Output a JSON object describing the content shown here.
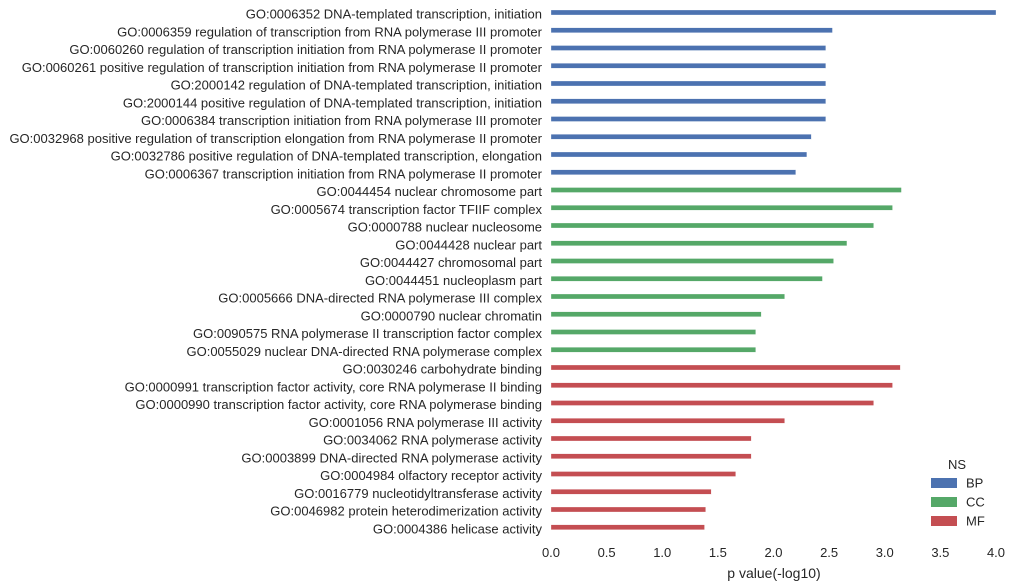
{
  "chart_data": {
    "type": "bar",
    "orientation": "horizontal",
    "xlabel": "p value(-log10)",
    "xlim": [
      0,
      4.0
    ],
    "xticks": [
      "0.0",
      "0.5",
      "1.0",
      "1.5",
      "2.0",
      "2.5",
      "3.0",
      "3.5",
      "4.0"
    ],
    "grid": false,
    "legend": {
      "title": "NS",
      "placement": "lower-right",
      "entries": [
        "BP",
        "CC",
        "MF"
      ]
    },
    "colors": {
      "BP": "#4c72b0",
      "CC": "#55a868",
      "MF": "#c44e52"
    },
    "categories": [
      {
        "label": "GO:0006352 DNA-templated transcription, initiation",
        "ns": "BP",
        "value": 4.0
      },
      {
        "label": "GO:0006359 regulation of transcription from RNA polymerase III promoter",
        "ns": "BP",
        "value": 2.53
      },
      {
        "label": "GO:0060260 regulation of transcription initiation from RNA polymerase II promoter",
        "ns": "BP",
        "value": 2.47
      },
      {
        "label": "GO:0060261 positive regulation of transcription initiation from RNA polymerase II promoter",
        "ns": "BP",
        "value": 2.47
      },
      {
        "label": "GO:2000142 regulation of DNA-templated transcription, initiation",
        "ns": "BP",
        "value": 2.47
      },
      {
        "label": "GO:2000144 positive regulation of DNA-templated transcription, initiation",
        "ns": "BP",
        "value": 2.47
      },
      {
        "label": "GO:0006384 transcription initiation from RNA polymerase III promoter",
        "ns": "BP",
        "value": 2.47
      },
      {
        "label": "GO:0032968 positive regulation of transcription elongation from RNA polymerase II promoter",
        "ns": "BP",
        "value": 2.34
      },
      {
        "label": "GO:0032786 positive regulation of DNA-templated transcription, elongation",
        "ns": "BP",
        "value": 2.3
      },
      {
        "label": "GO:0006367 transcription initiation from RNA polymerase II promoter",
        "ns": "BP",
        "value": 2.2
      },
      {
        "label": "GO:0044454 nuclear chromosome part",
        "ns": "CC",
        "value": 3.15
      },
      {
        "label": "GO:0005674 transcription factor TFIIF complex",
        "ns": "CC",
        "value": 3.07
      },
      {
        "label": "GO:0000788 nuclear nucleosome",
        "ns": "CC",
        "value": 2.9
      },
      {
        "label": "GO:0044428 nuclear part",
        "ns": "CC",
        "value": 2.66
      },
      {
        "label": "GO:0044427 chromosomal part",
        "ns": "CC",
        "value": 2.54
      },
      {
        "label": "GO:0044451 nucleoplasm part",
        "ns": "CC",
        "value": 2.44
      },
      {
        "label": "GO:0005666 DNA-directed RNA polymerase III complex",
        "ns": "CC",
        "value": 2.1
      },
      {
        "label": "GO:0000790 nuclear chromatin",
        "ns": "CC",
        "value": 1.89
      },
      {
        "label": "GO:0090575 RNA polymerase II transcription factor complex",
        "ns": "CC",
        "value": 1.84
      },
      {
        "label": "GO:0055029 nuclear DNA-directed RNA polymerase complex",
        "ns": "CC",
        "value": 1.84
      },
      {
        "label": "GO:0030246 carbohydrate binding",
        "ns": "MF",
        "value": 3.14
      },
      {
        "label": "GO:0000991 transcription factor activity, core RNA polymerase II binding",
        "ns": "MF",
        "value": 3.07
      },
      {
        "label": "GO:0000990 transcription factor activity, core RNA polymerase binding",
        "ns": "MF",
        "value": 2.9
      },
      {
        "label": "GO:0001056 RNA polymerase III activity",
        "ns": "MF",
        "value": 2.1
      },
      {
        "label": "GO:0034062 RNA polymerase activity",
        "ns": "MF",
        "value": 1.8
      },
      {
        "label": "GO:0003899 DNA-directed RNA polymerase activity",
        "ns": "MF",
        "value": 1.8
      },
      {
        "label": "GO:0004984 olfactory receptor activity",
        "ns": "MF",
        "value": 1.66
      },
      {
        "label": "GO:0016779 nucleotidyltransferase activity",
        "ns": "MF",
        "value": 1.44
      },
      {
        "label": "GO:0046982 protein heterodimerization activity",
        "ns": "MF",
        "value": 1.39
      },
      {
        "label": "GO:0004386 helicase activity",
        "ns": "MF",
        "value": 1.38
      }
    ]
  }
}
